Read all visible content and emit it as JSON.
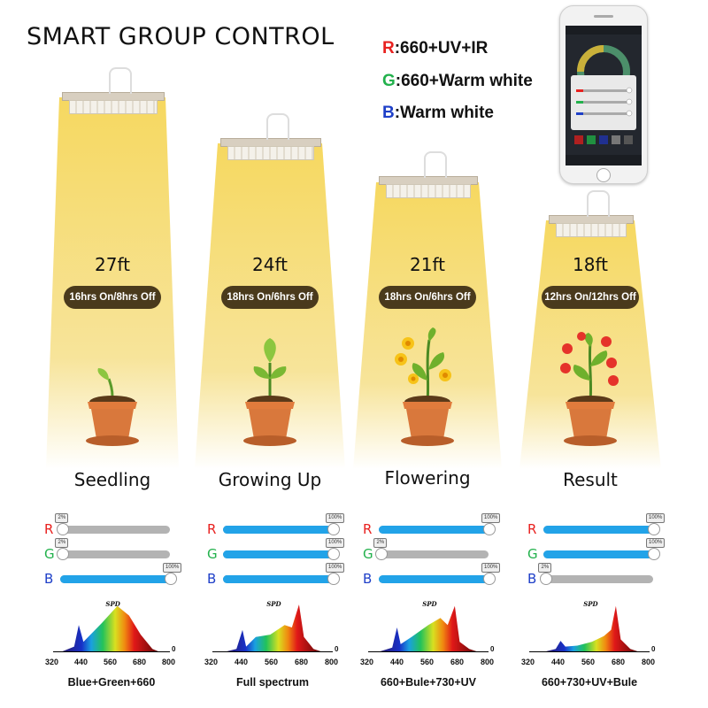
{
  "title": "SMART GROUP CONTROL",
  "legend": [
    {
      "letter": "R",
      "text": ":660+UV+IR",
      "color": "#e8211f"
    },
    {
      "letter": "G",
      "text": ":660+Warm white",
      "color": "#22b14c"
    },
    {
      "letter": "B",
      "text": ":Warm white",
      "color": "#1e3fc8"
    }
  ],
  "phone": {
    "icon": "smartphone-app-icon"
  },
  "colors": {
    "beam": "#f5dd6a",
    "pill": "#4a3a1c",
    "slider_fill": "#22a3e8",
    "slider_track": "#b3b3b3",
    "pot": "#d9783c"
  },
  "stages": [
    {
      "height": "27ft",
      "schedule": "16hrs On/8hrs Off",
      "name": "Seedling",
      "plant_icon": "seedling-icon",
      "sliders": [
        {
          "letter": "R",
          "pct": 0.02,
          "tag": "2%"
        },
        {
          "letter": "G",
          "pct": 0.02,
          "tag": "2%"
        },
        {
          "letter": "B",
          "pct": 1.0,
          "tag": "100%"
        }
      ],
      "spd_title": "SPD",
      "caption": "Blue+Green+660",
      "ticks": [
        "320",
        "440",
        "560",
        "680",
        "800"
      ],
      "zero": "0"
    },
    {
      "height": "24ft",
      "schedule": "18hrs On/6hrs Off",
      "name": "Growing Up",
      "plant_icon": "young-plant-icon",
      "sliders": [
        {
          "letter": "R",
          "pct": 1.0,
          "tag": "100%"
        },
        {
          "letter": "G",
          "pct": 1.0,
          "tag": "100%"
        },
        {
          "letter": "B",
          "pct": 1.0,
          "tag": "100%"
        }
      ],
      "spd_title": "SPD",
      "caption": "Full spectrum",
      "ticks": [
        "320",
        "440",
        "560",
        "680",
        "800"
      ],
      "zero": "0"
    },
    {
      "height": "21ft",
      "schedule": "18hrs On/6hrs Off",
      "name": "Flowering",
      "plant_icon": "flowering-plant-icon",
      "sliders": [
        {
          "letter": "R",
          "pct": 1.0,
          "tag": "100%"
        },
        {
          "letter": "G",
          "pct": 0.02,
          "tag": "2%"
        },
        {
          "letter": "B",
          "pct": 1.0,
          "tag": "100%"
        }
      ],
      "spd_title": "SPD",
      "caption": "660+Bule+730+UV",
      "ticks": [
        "320",
        "440",
        "560",
        "680",
        "800"
      ],
      "zero": "0"
    },
    {
      "height": "18ft",
      "schedule": "12hrs On/12hrs Off",
      "name": "Result",
      "plant_icon": "tomato-plant-icon",
      "sliders": [
        {
          "letter": "R",
          "pct": 1.0,
          "tag": "100%"
        },
        {
          "letter": "G",
          "pct": 1.0,
          "tag": "100%"
        },
        {
          "letter": "B",
          "pct": 0.02,
          "tag": "2%"
        }
      ],
      "spd_title": "SPD",
      "caption": "660+730+UV+Bule",
      "ticks": [
        "320",
        "440",
        "560",
        "680",
        "800"
      ],
      "zero": "0"
    }
  ]
}
